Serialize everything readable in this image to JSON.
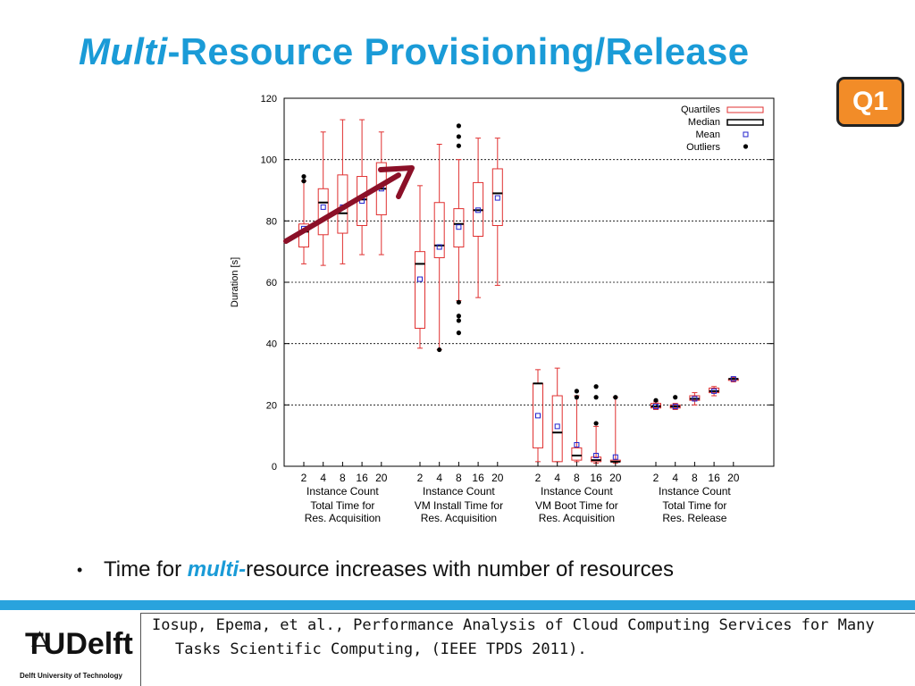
{
  "slide": {
    "title_italic": "Multi",
    "title_rest": "-Resource Provisioning/Release",
    "badge": "Q1",
    "bullet_prefix": "Time for ",
    "bullet_highlight": "multi",
    "bullet_dash": "-",
    "bullet_suffix": "resource increases with number of resources",
    "logo_text": "TUDelft",
    "logo_subtext": "Delft University of Technology",
    "reference": "Iosup, Epema, et al., Performance Analysis of Cloud Computing Services for Many Tasks Scientific Computing, (IEEE TPDS 2011).",
    "colors": {
      "title": "#1a9bd7",
      "badge": "#f28c28",
      "bar": "#29a3dd",
      "arrow": "#8b1028",
      "box": "#e03030",
      "mean": "#2222cc"
    }
  },
  "chart_data": {
    "type": "box",
    "ylabel": "Duration [s]",
    "ylim": [
      0,
      120
    ],
    "yticks": [
      0,
      20,
      40,
      60,
      80,
      100,
      120
    ],
    "grid": "horizontal dashed at 20,40,60,80,100",
    "legend": {
      "placement": "top-right",
      "entries": [
        "Quartiles",
        "Median",
        "Mean",
        "Outliers"
      ]
    },
    "groups": [
      {
        "labels": [
          "Instance Count",
          "Total Time for",
          "Res. Acquisition"
        ],
        "categories": [
          "2",
          "4",
          "8",
          "16",
          "20"
        ],
        "boxes": [
          {
            "whisker_low": 66,
            "q1": 71.5,
            "median": 76.5,
            "mean": 77.5,
            "q3": 79,
            "whisker_high": 93,
            "outliers": [
              93,
              94.5
            ]
          },
          {
            "whisker_low": 65.5,
            "q1": 75.5,
            "median": 86,
            "mean": 84.5,
            "q3": 90.5,
            "whisker_high": 109,
            "outliers": []
          },
          {
            "whisker_low": 66,
            "q1": 76,
            "median": 82.5,
            "mean": 84.5,
            "q3": 95,
            "whisker_high": 113,
            "outliers": []
          },
          {
            "whisker_low": 69,
            "q1": 78.5,
            "median": 87,
            "mean": 86.5,
            "q3": 94.5,
            "whisker_high": 113,
            "outliers": []
          },
          {
            "whisker_low": 69,
            "q1": 82,
            "median": 90.5,
            "mean": 90.5,
            "q3": 99,
            "whisker_high": 109,
            "outliers": []
          }
        ]
      },
      {
        "labels": [
          "Instance Count",
          "VM Install Time for",
          "Res. Acquisition"
        ],
        "categories": [
          "2",
          "4",
          "8",
          "16",
          "20"
        ],
        "boxes": [
          {
            "whisker_low": 38.5,
            "q1": 45,
            "median": 66,
            "mean": 61,
            "q3": 70,
            "whisker_high": 91.5,
            "outliers": []
          },
          {
            "whisker_low": 38,
            "q1": 68,
            "median": 72,
            "mean": 71.5,
            "q3": 86,
            "whisker_high": 105,
            "outliers": [
              38
            ]
          },
          {
            "whisker_low": 54,
            "q1": 71.5,
            "median": 79,
            "mean": 78,
            "q3": 84,
            "whisker_high": 100,
            "outliers": [
              53.5,
              49,
              47.5,
              43.5,
              111,
              107.5,
              104.5
            ]
          },
          {
            "whisker_low": 55,
            "q1": 75,
            "median": 83.5,
            "mean": 83.5,
            "q3": 92.5,
            "whisker_high": 107,
            "outliers": []
          },
          {
            "whisker_low": 59,
            "q1": 78.5,
            "median": 89,
            "mean": 87.5,
            "q3": 97,
            "whisker_high": 107,
            "outliers": []
          }
        ]
      },
      {
        "labels": [
          "Instance Count",
          "VM Boot Time for",
          "Res. Acquisition"
        ],
        "categories": [
          "2",
          "4",
          "8",
          "16",
          "20"
        ],
        "boxes": [
          {
            "whisker_low": 1.5,
            "q1": 6,
            "median": 27,
            "mean": 16.5,
            "q3": 27,
            "whisker_high": 31.5,
            "outliers": []
          },
          {
            "whisker_low": 1.5,
            "q1": 1.5,
            "median": 11,
            "mean": 13,
            "q3": 23,
            "whisker_high": 32,
            "outliers": []
          },
          {
            "whisker_low": 1.5,
            "q1": 2,
            "median": 3.5,
            "mean": 7,
            "q3": 6,
            "whisker_high": 23,
            "outliers": [
              22.5,
              24.5
            ]
          },
          {
            "whisker_low": 1,
            "q1": 1.5,
            "median": 2,
            "mean": 3.5,
            "q3": 3,
            "whisker_high": 13,
            "outliers": [
              14,
              22.5,
              26
            ]
          },
          {
            "whisker_low": 1,
            "q1": 1.5,
            "median": 1.5,
            "mean": 3,
            "q3": 2,
            "whisker_high": 22.5,
            "outliers": [
              22.5
            ]
          }
        ]
      },
      {
        "labels": [
          "Instance Count",
          "Total Time for",
          "Res. Release"
        ],
        "categories": [
          "2",
          "4",
          "8",
          "16",
          "20"
        ],
        "boxes": [
          {
            "whisker_low": 18.5,
            "q1": 19,
            "median": 19.5,
            "mean": 19.5,
            "q3": 20.5,
            "whisker_high": 21,
            "outliers": [
              21.5
            ]
          },
          {
            "whisker_low": 18.5,
            "q1": 19,
            "median": 19.5,
            "mean": 19.5,
            "q3": 20,
            "whisker_high": 20.5,
            "outliers": [
              22.5
            ]
          },
          {
            "whisker_low": 20,
            "q1": 21.5,
            "median": 22,
            "mean": 22,
            "q3": 23,
            "whisker_high": 24,
            "outliers": []
          },
          {
            "whisker_low": 23,
            "q1": 24,
            "median": 24.5,
            "mean": 24.5,
            "q3": 25.5,
            "whisker_high": 26,
            "outliers": []
          },
          {
            "whisker_low": 27.5,
            "q1": 28,
            "median": 28.5,
            "mean": 28.5,
            "q3": 28.5,
            "whisker_high": 29,
            "outliers": []
          }
        ]
      }
    ]
  }
}
